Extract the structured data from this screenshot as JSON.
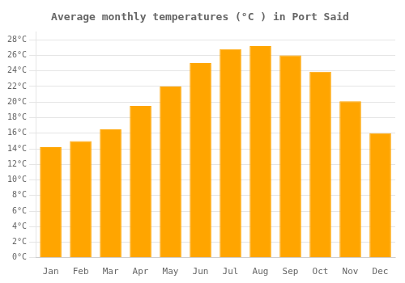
{
  "chart_data": {
    "type": "bar",
    "title": "Average monthly temperatures (°C ) in Port Said",
    "categories": [
      "Jan",
      "Feb",
      "Mar",
      "Apr",
      "May",
      "Jun",
      "Jul",
      "Aug",
      "Sep",
      "Oct",
      "Nov",
      "Dec"
    ],
    "values": [
      14.2,
      15.0,
      16.5,
      19.5,
      22.0,
      25.0,
      26.8,
      27.2,
      26.0,
      23.9,
      20.1,
      16.0
    ],
    "color": "#FFA500",
    "ylim": [
      0,
      29
    ],
    "yticks": [
      {
        "value": 0,
        "label": "0°C"
      },
      {
        "value": 2,
        "label": "2°C"
      },
      {
        "value": 4,
        "label": "4°C"
      },
      {
        "value": 6,
        "label": "6°C"
      },
      {
        "value": 8,
        "label": "8°C"
      },
      {
        "value": 10,
        "label": "10°C"
      },
      {
        "value": 12,
        "label": "12°C"
      },
      {
        "value": 14,
        "label": "14°C"
      },
      {
        "value": 16,
        "label": "16°C"
      },
      {
        "value": 18,
        "label": "18°C"
      },
      {
        "value": 20,
        "label": "20°C"
      },
      {
        "value": 22,
        "label": "22°C"
      },
      {
        "value": 24,
        "label": "24°C"
      },
      {
        "value": 26,
        "label": "26°C"
      },
      {
        "value": 28,
        "label": "28°C"
      }
    ],
    "grid": "y"
  }
}
